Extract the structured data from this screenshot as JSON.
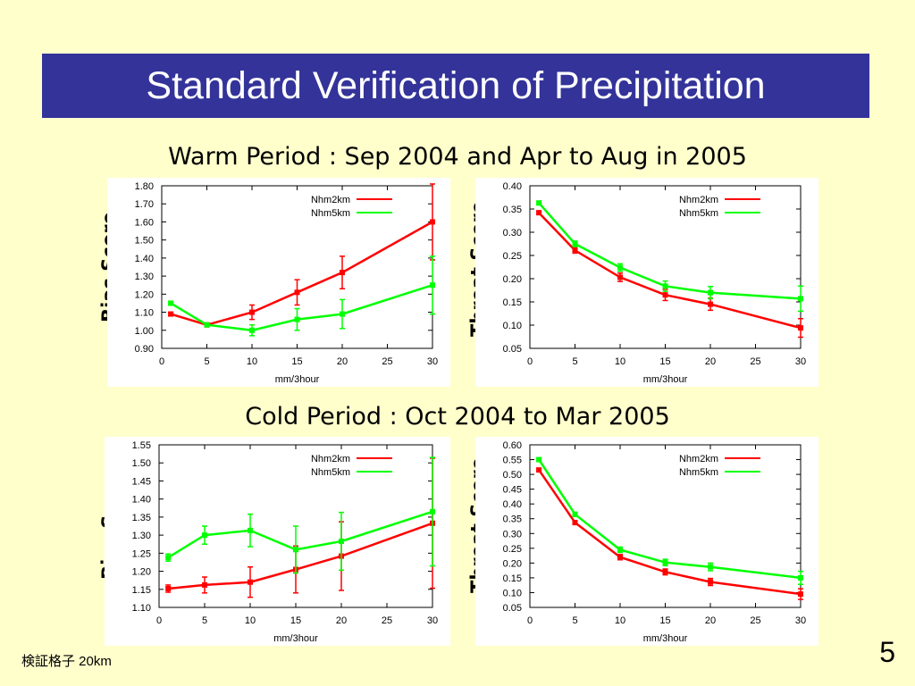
{
  "slide": {
    "title": "Standard Verification of Precipitation",
    "warm_label": "Warm Period : Sep 2004 and Apr to Aug in 2005",
    "cold_label": "Cold Period : Oct 2004 to Mar 2005",
    "footer": "検証格子 20km",
    "page": "5"
  },
  "colors": {
    "title_bg": "#333399",
    "background": "#ffffcc",
    "nhm2km": "#ff0000",
    "nhm5km": "#00ff00"
  },
  "chart_data": [
    {
      "id": "warm-bias",
      "type": "line",
      "ylabel": "Bias Score",
      "xlabel": "mm/3hour",
      "xticks": [
        0,
        5,
        10,
        15,
        20,
        25,
        30
      ],
      "xlim": [
        0,
        30
      ],
      "ylim": [
        0.9,
        1.8
      ],
      "yticks": [
        "0.90",
        "1.00",
        "1.10",
        "1.20",
        "1.30",
        "1.40",
        "1.50",
        "1.60",
        "1.70",
        "1.80"
      ],
      "series": [
        {
          "name": "Nhm2km",
          "color": "#ff0000",
          "x": [
            1,
            5,
            10,
            15,
            20,
            30
          ],
          "y": [
            1.09,
            1.03,
            1.1,
            1.21,
            1.32,
            1.6
          ],
          "err": [
            0.01,
            0.01,
            0.04,
            0.07,
            0.09,
            0.21
          ]
        },
        {
          "name": "Nhm5km",
          "color": "#00ff00",
          "x": [
            1,
            5,
            10,
            15,
            20,
            30
          ],
          "y": [
            1.15,
            1.03,
            1.0,
            1.06,
            1.09,
            1.25
          ],
          "err": [
            0.01,
            0.01,
            0.03,
            0.06,
            0.08,
            0.16
          ]
        }
      ]
    },
    {
      "id": "warm-threat",
      "type": "line",
      "ylabel": "Threat Score",
      "xlabel": "mm/3hour",
      "xticks": [
        0,
        5,
        10,
        15,
        20,
        25,
        30
      ],
      "xlim": [
        0,
        30
      ],
      "ylim": [
        0.05,
        0.4
      ],
      "yticks": [
        "0.05",
        "0.10",
        "0.15",
        "0.20",
        "0.25",
        "0.30",
        "0.35",
        "0.40"
      ],
      "series": [
        {
          "name": "Nhm2km",
          "color": "#ff0000",
          "x": [
            1,
            5,
            10,
            15,
            20,
            30
          ],
          "y": [
            0.342,
            0.261,
            0.203,
            0.165,
            0.145,
            0.094
          ],
          "err": [
            0.004,
            0.006,
            0.009,
            0.012,
            0.013,
            0.02
          ]
        },
        {
          "name": "Nhm5km",
          "color": "#00ff00",
          "x": [
            1,
            5,
            10,
            15,
            20,
            30
          ],
          "y": [
            0.363,
            0.275,
            0.224,
            0.184,
            0.17,
            0.157
          ],
          "err": [
            0.004,
            0.006,
            0.008,
            0.011,
            0.013,
            0.027
          ]
        }
      ]
    },
    {
      "id": "cold-bias",
      "type": "line",
      "ylabel": "Bias Score",
      "xlabel": "mm/3hour",
      "xticks": [
        0,
        5,
        10,
        15,
        20,
        25,
        30
      ],
      "xlim": [
        0,
        30
      ],
      "ylim": [
        1.1,
        1.55
      ],
      "yticks": [
        "1.10",
        "1.15",
        "1.20",
        "1.25",
        "1.30",
        "1.35",
        "1.40",
        "1.45",
        "1.50",
        "1.55"
      ],
      "series": [
        {
          "name": "Nhm2km",
          "color": "#ff0000",
          "x": [
            1,
            5,
            10,
            15,
            20,
            30
          ],
          "y": [
            1.152,
            1.162,
            1.17,
            1.205,
            1.242,
            1.333
          ],
          "err": [
            0.01,
            0.022,
            0.042,
            0.065,
            0.095,
            0.18
          ]
        },
        {
          "name": "Nhm5km",
          "color": "#00ff00",
          "x": [
            1,
            5,
            10,
            15,
            20,
            30
          ],
          "y": [
            1.238,
            1.3,
            1.313,
            1.26,
            1.283,
            1.365
          ],
          "err": [
            0.01,
            0.025,
            0.045,
            0.065,
            0.08,
            0.15
          ]
        }
      ]
    },
    {
      "id": "cold-threat",
      "type": "line",
      "ylabel": "Threat Score",
      "xlabel": "mm/3hour",
      "xticks": [
        0,
        5,
        10,
        15,
        20,
        25,
        30
      ],
      "xlim": [
        0,
        30
      ],
      "ylim": [
        0.05,
        0.6
      ],
      "yticks": [
        "0.05",
        "0.10",
        "0.15",
        "0.20",
        "0.25",
        "0.30",
        "0.35",
        "0.40",
        "0.45",
        "0.50",
        "0.55",
        "0.60"
      ],
      "series": [
        {
          "name": "Nhm2km",
          "color": "#ff0000",
          "x": [
            1,
            5,
            10,
            15,
            20,
            30
          ],
          "y": [
            0.515,
            0.337,
            0.22,
            0.17,
            0.136,
            0.095
          ],
          "err": [
            0.004,
            0.007,
            0.009,
            0.01,
            0.012,
            0.018
          ]
        },
        {
          "name": "Nhm5km",
          "color": "#00ff00",
          "x": [
            1,
            5,
            10,
            15,
            20,
            30
          ],
          "y": [
            0.55,
            0.365,
            0.245,
            0.202,
            0.187,
            0.15
          ],
          "err": [
            0.004,
            0.007,
            0.009,
            0.011,
            0.013,
            0.022
          ]
        }
      ]
    }
  ]
}
